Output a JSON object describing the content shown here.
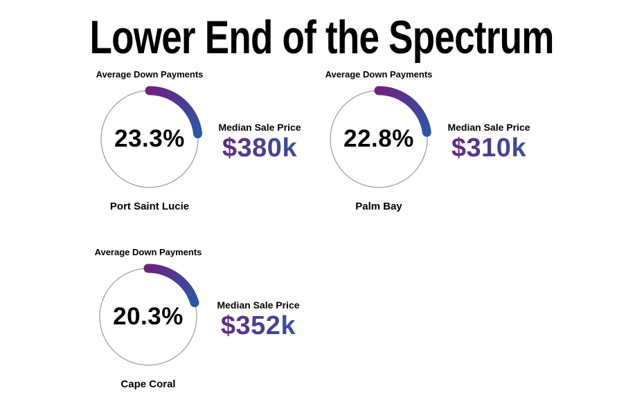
{
  "title": "Lower End of the Spectrum",
  "colors": {
    "arc_gradient_start": "#6e2180",
    "arc_gradient_end": "#2d55a6",
    "price_gradient_start": "#6b2179",
    "price_gradient_end": "#2e58a8",
    "ring": "#9a9a9a",
    "text": "#000000"
  },
  "gauges": [
    {
      "city": "Port Saint Lucie",
      "metric_label": "Average Down Payments",
      "value_pct": 23.3,
      "value_display": "23.3%",
      "median_label": "Median Sale Price",
      "median_display": "$380k"
    },
    {
      "city": "Palm Bay",
      "metric_label": "Average Down Payments",
      "value_pct": 22.8,
      "value_display": "22.8%",
      "median_label": "Median Sale Price",
      "median_display": "$310k"
    },
    {
      "city": "Cape Coral",
      "metric_label": "Average Down Payments",
      "value_pct": 20.3,
      "value_display": "20.3%",
      "median_label": "Median Sale Price",
      "median_display": "$352k"
    }
  ],
  "chart_data": {
    "type": "gauge",
    "title": "Lower End of the Spectrum",
    "gauge_range": [
      0,
      100
    ],
    "units": {
      "value": "percent",
      "median_sale_price": "USD thousands"
    },
    "series": [
      {
        "city": "Port Saint Lucie",
        "avg_down_payment_pct": 23.3,
        "median_sale_price": "$380k"
      },
      {
        "city": "Palm Bay",
        "avg_down_payment_pct": 22.8,
        "median_sale_price": "$310k"
      },
      {
        "city": "Cape Coral",
        "avg_down_payment_pct": 20.3,
        "median_sale_price": "$352k"
      }
    ],
    "legend_position": "none",
    "grid": false
  }
}
